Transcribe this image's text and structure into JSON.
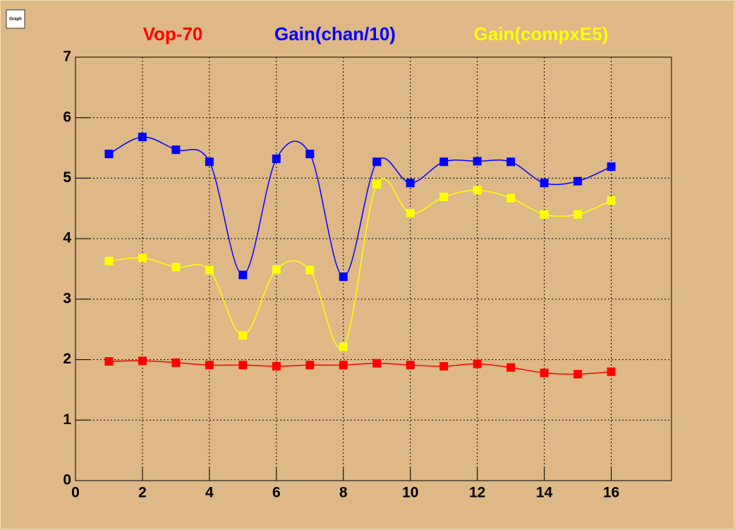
{
  "toolbar": {
    "button": "Graph"
  },
  "chart_data": {
    "type": "line",
    "x": [
      1,
      2,
      3,
      4,
      5,
      6,
      7,
      8,
      9,
      10,
      11,
      12,
      13,
      14,
      15,
      16
    ],
    "series": [
      {
        "name": "Vop-70",
        "color": "#ff0000",
        "values": [
          1.97,
          1.98,
          1.95,
          1.91,
          1.91,
          1.89,
          1.91,
          1.91,
          1.94,
          1.91,
          1.89,
          1.93,
          1.87,
          1.78,
          1.76,
          1.8
        ]
      },
      {
        "name": "Gain(chan/10)",
        "color": "#0000ff",
        "values": [
          5.4,
          5.68,
          5.47,
          5.27,
          3.4,
          5.32,
          5.4,
          3.37,
          5.27,
          4.92,
          5.27,
          5.28,
          5.27,
          4.92,
          4.95,
          5.19
        ]
      },
      {
        "name": "Gain(compxE5)",
        "color": "#ffff00",
        "values": [
          3.63,
          3.68,
          3.53,
          3.48,
          2.4,
          3.49,
          3.48,
          2.21,
          4.9,
          4.42,
          4.69,
          4.8,
          4.67,
          4.4,
          4.4,
          4.63
        ]
      }
    ],
    "xlim": [
      0,
      17.8
    ],
    "xticks": [
      0,
      2,
      4,
      6,
      8,
      10,
      12,
      14,
      16
    ],
    "ylim": [
      0,
      7
    ],
    "yticks": [
      0,
      1,
      2,
      3,
      4,
      5,
      6,
      7
    ],
    "grid": true,
    "smooth": true
  }
}
